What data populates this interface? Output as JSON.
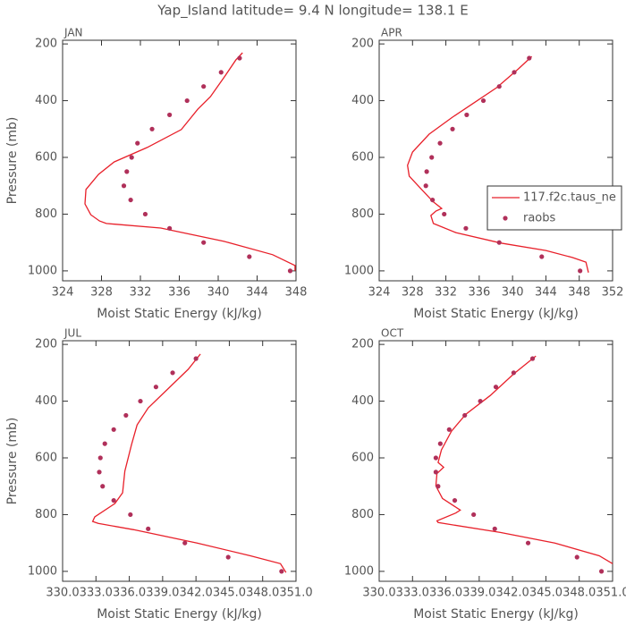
{
  "title": "Yap_Island  latitude= 9.4 N longitude= 138.1 E",
  "chart_data": [
    {
      "type": "line",
      "panel_title": "JAN",
      "xlabel": "Moist Static Energy (kJ/kg)",
      "ylabel": "Pressure (mb)",
      "xlim": [
        324,
        348
      ],
      "xticks": [
        324,
        328,
        332,
        336,
        340,
        344,
        348
      ],
      "ylim": [
        1035,
        187
      ],
      "yticks": [
        200,
        400,
        600,
        800,
        1000
      ],
      "legend": false,
      "series": [
        {
          "type": "line",
          "color": "#e8202a",
          "x": [
            342.5,
            341.8,
            340.7,
            339.2,
            337.9,
            336.2,
            332.7,
            329.3,
            327.7,
            326.4,
            326.3,
            326.9,
            327.8,
            328.5,
            334.1,
            340.6,
            345.6,
            347.9,
            347.9
          ],
          "y": [
            231,
            257,
            313,
            386,
            430,
            502,
            565,
            616,
            660,
            713,
            764,
            802,
            824,
            833,
            849,
            896,
            943,
            981,
            1000
          ]
        },
        {
          "type": "scatter",
          "color": "#b0305a",
          "x": [
            342.2,
            340.3,
            338.5,
            336.8,
            335.0,
            333.2,
            331.7,
            331.1,
            330.6,
            330.3,
            331.0,
            332.5,
            335.0,
            338.5,
            343.2,
            347.4
          ],
          "y": [
            250,
            300,
            350,
            400,
            450,
            500,
            550,
            600,
            650,
            700,
            750,
            800,
            850,
            900,
            950,
            1000
          ]
        }
      ]
    },
    {
      "type": "line",
      "panel_title": "APR",
      "xlabel": "Moist Static Energy (kJ/kg)",
      "xlim": [
        324,
        352
      ],
      "xticks": [
        324,
        328,
        332,
        336,
        340,
        344,
        348,
        352
      ],
      "ylim": [
        1035,
        187
      ],
      "yticks": [
        200,
        400,
        600,
        800,
        1000
      ],
      "legend": true,
      "series": [
        {
          "type": "line",
          "name": "117.f2c.taus_ne",
          "color": "#e8202a",
          "x": [
            342.3,
            340.7,
            338.1,
            335.2,
            332.8,
            330.0,
            328.0,
            327.4,
            327.6,
            329.1,
            330.5,
            331.5,
            330.8,
            330.2,
            330.5,
            333.2,
            338.6,
            344.0,
            347.2,
            348.8,
            349.1
          ],
          "y": [
            244,
            288,
            354,
            411,
            458,
            518,
            581,
            628,
            666,
            713,
            757,
            780,
            789,
            805,
            833,
            865,
            902,
            928,
            953,
            969,
            1006
          ]
        },
        {
          "type": "scatter",
          "name": "raobs",
          "color": "#b0305a",
          "x": [
            342.0,
            340.2,
            338.4,
            336.5,
            334.5,
            332.8,
            331.3,
            330.3,
            329.7,
            329.6,
            330.4,
            331.8,
            334.4,
            338.4,
            343.5,
            348.1
          ],
          "y": [
            250,
            300,
            350,
            400,
            450,
            500,
            550,
            600,
            650,
            700,
            750,
            800,
            850,
            900,
            950,
            1000
          ]
        }
      ]
    },
    {
      "type": "line",
      "panel_title": "JUL",
      "xlabel": "Moist Static Energy (kJ/kg)",
      "ylabel": "Pressure (mb)",
      "xlim": [
        330,
        351
      ],
      "xticks": [
        {
          "value": 330,
          "label": "330.0"
        },
        {
          "value": 333,
          "label": "333.0"
        },
        {
          "value": 336,
          "label": "336.0"
        },
        {
          "value": 339,
          "label": "339.0"
        },
        {
          "value": 342,
          "label": "342.0"
        },
        {
          "value": 345,
          "label": "345.0"
        },
        {
          "value": 348,
          "label": "348.0"
        },
        {
          "value": 351,
          "label": "351.0"
        }
      ],
      "ylim": [
        1035,
        187
      ],
      "yticks": [
        200,
        400,
        600,
        800,
        1000
      ],
      "legend": false,
      "series": [
        {
          "type": "line",
          "color": "#e8202a",
          "x": [
            342.4,
            341.3,
            339.7,
            337.7,
            336.7,
            336.2,
            335.6,
            335.4,
            334.7,
            332.9,
            332.7,
            333.2,
            336.4,
            342.1,
            346.9,
            349.6,
            350.1
          ],
          "y": [
            234,
            288,
            348,
            424,
            484,
            553,
            647,
            723,
            761,
            808,
            824,
            831,
            853,
            900,
            945,
            973,
            1004
          ]
        },
        {
          "type": "scatter",
          "color": "#b0305a",
          "x": [
            342.0,
            339.9,
            338.4,
            337.0,
            335.7,
            334.6,
            333.8,
            333.4,
            333.3,
            333.6,
            334.6,
            336.1,
            337.7,
            341.0,
            344.9,
            349.7
          ],
          "y": [
            250,
            300,
            350,
            400,
            450,
            500,
            550,
            600,
            650,
            700,
            750,
            800,
            850,
            900,
            950,
            1000
          ]
        }
      ]
    },
    {
      "type": "line",
      "panel_title": "OCT",
      "xlabel": "Moist Static Energy (kJ/kg)",
      "xlim": [
        330,
        351
      ],
      "xticks": [
        {
          "value": 330,
          "label": "330.0"
        },
        {
          "value": 333,
          "label": "333.0"
        },
        {
          "value": 336,
          "label": "336.0"
        },
        {
          "value": 339,
          "label": "339.0"
        },
        {
          "value": 342,
          "label": "342.0"
        },
        {
          "value": 345,
          "label": "345.0"
        },
        {
          "value": 348,
          "label": "348.0"
        },
        {
          "value": 351,
          "label": "351.0"
        }
      ],
      "ylim": [
        1035,
        187
      ],
      "yticks": [
        200,
        400,
        600,
        800,
        1000
      ],
      "legend": false,
      "series": [
        {
          "type": "line",
          "color": "#e8202a",
          "x": [
            344.1,
            342.1,
            340.0,
            337.8,
            336.5,
            335.6,
            335.3,
            335.8,
            335.2,
            335.1,
            335.7,
            337.3,
            336.9,
            335.2,
            335.3,
            340.9,
            345.8,
            349.8,
            351.0
          ],
          "y": [
            241,
            304,
            380,
            446,
            506,
            572,
            616,
            633,
            655,
            699,
            743,
            784,
            794,
            822,
            828,
            863,
            900,
            945,
            973
          ]
        },
        {
          "type": "scatter",
          "color": "#b0305a",
          "x": [
            343.8,
            342.1,
            340.5,
            339.1,
            337.7,
            336.3,
            335.5,
            335.1,
            335.1,
            335.3,
            336.8,
            338.5,
            340.4,
            343.4,
            347.8,
            350.0
          ],
          "y": [
            250,
            300,
            350,
            400,
            450,
            500,
            550,
            600,
            650,
            700,
            750,
            800,
            850,
            900,
            950,
            1000
          ]
        }
      ]
    }
  ]
}
